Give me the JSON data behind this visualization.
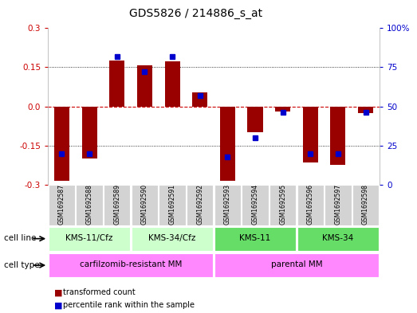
{
  "title": "GDS5826 / 214886_s_at",
  "samples": [
    "GSM1692587",
    "GSM1692588",
    "GSM1692589",
    "GSM1692590",
    "GSM1692591",
    "GSM1692592",
    "GSM1692593",
    "GSM1692594",
    "GSM1692595",
    "GSM1692596",
    "GSM1692597",
    "GSM1692598"
  ],
  "transformed_count": [
    -0.285,
    -0.2,
    0.175,
    0.158,
    0.172,
    0.055,
    -0.285,
    -0.1,
    -0.018,
    -0.215,
    -0.225,
    -0.025
  ],
  "percentile_rank": [
    20,
    20,
    82,
    72,
    82,
    57,
    18,
    30,
    46,
    20,
    20,
    46
  ],
  "cell_line_groups": [
    {
      "label": "KMS-11/Cfz",
      "start": 0,
      "end": 2,
      "color": "#ccffcc"
    },
    {
      "label": "KMS-34/Cfz",
      "start": 3,
      "end": 5,
      "color": "#ccffcc"
    },
    {
      "label": "KMS-11",
      "start": 6,
      "end": 8,
      "color": "#66dd66"
    },
    {
      "label": "KMS-34",
      "start": 9,
      "end": 11,
      "color": "#66dd66"
    }
  ],
  "cell_type_groups": [
    {
      "label": "carfilzomib-resistant MM",
      "start": 0,
      "end": 5,
      "color": "#ff88ff"
    },
    {
      "label": "parental MM",
      "start": 6,
      "end": 11,
      "color": "#ff88ff"
    }
  ],
  "ylim_left": [
    -0.3,
    0.3
  ],
  "ylim_right": [
    0,
    100
  ],
  "yticks_left": [
    -0.3,
    -0.15,
    0.0,
    0.15,
    0.3
  ],
  "yticks_right": [
    0,
    25,
    50,
    75,
    100
  ],
  "bar_color": "#990000",
  "dot_color": "#0000cc",
  "left_tick_color": "#cc0000",
  "right_tick_color": "#0000cc"
}
